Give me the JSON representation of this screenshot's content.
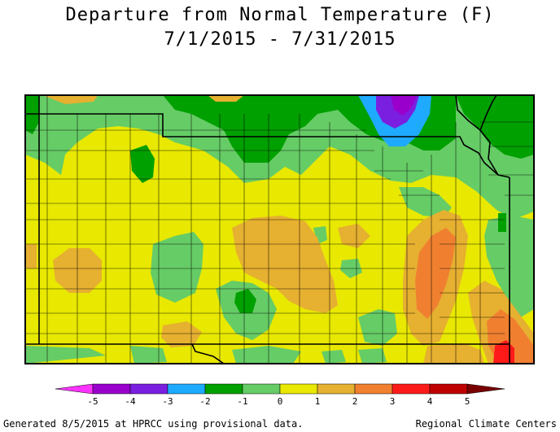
{
  "title": {
    "line1": "Departure from Normal Temperature (F)",
    "line2": "7/1/2015 - 7/31/2015"
  },
  "legend": {
    "bins": [
      {
        "color": "#ff33ff"
      },
      {
        "color": "#9900cc"
      },
      {
        "color": "#7a1fe0"
      },
      {
        "color": "#1eaaff"
      },
      {
        "color": "#00a000"
      },
      {
        "color": "#66cc66"
      },
      {
        "color": "#e8e800"
      },
      {
        "color": "#e6b030"
      },
      {
        "color": "#f08030"
      },
      {
        "color": "#ff1a1a"
      },
      {
        "color": "#c00000"
      },
      {
        "color": "#7a0000"
      }
    ],
    "labels": [
      "-5",
      "-4",
      "-3",
      "-2",
      "-1",
      "0",
      "1",
      "2",
      "3",
      "4",
      "5"
    ]
  },
  "footer": {
    "left": "Generated 8/5/2015 at HPRCC using provisional data.",
    "right": "Regional Climate Centers"
  }
}
